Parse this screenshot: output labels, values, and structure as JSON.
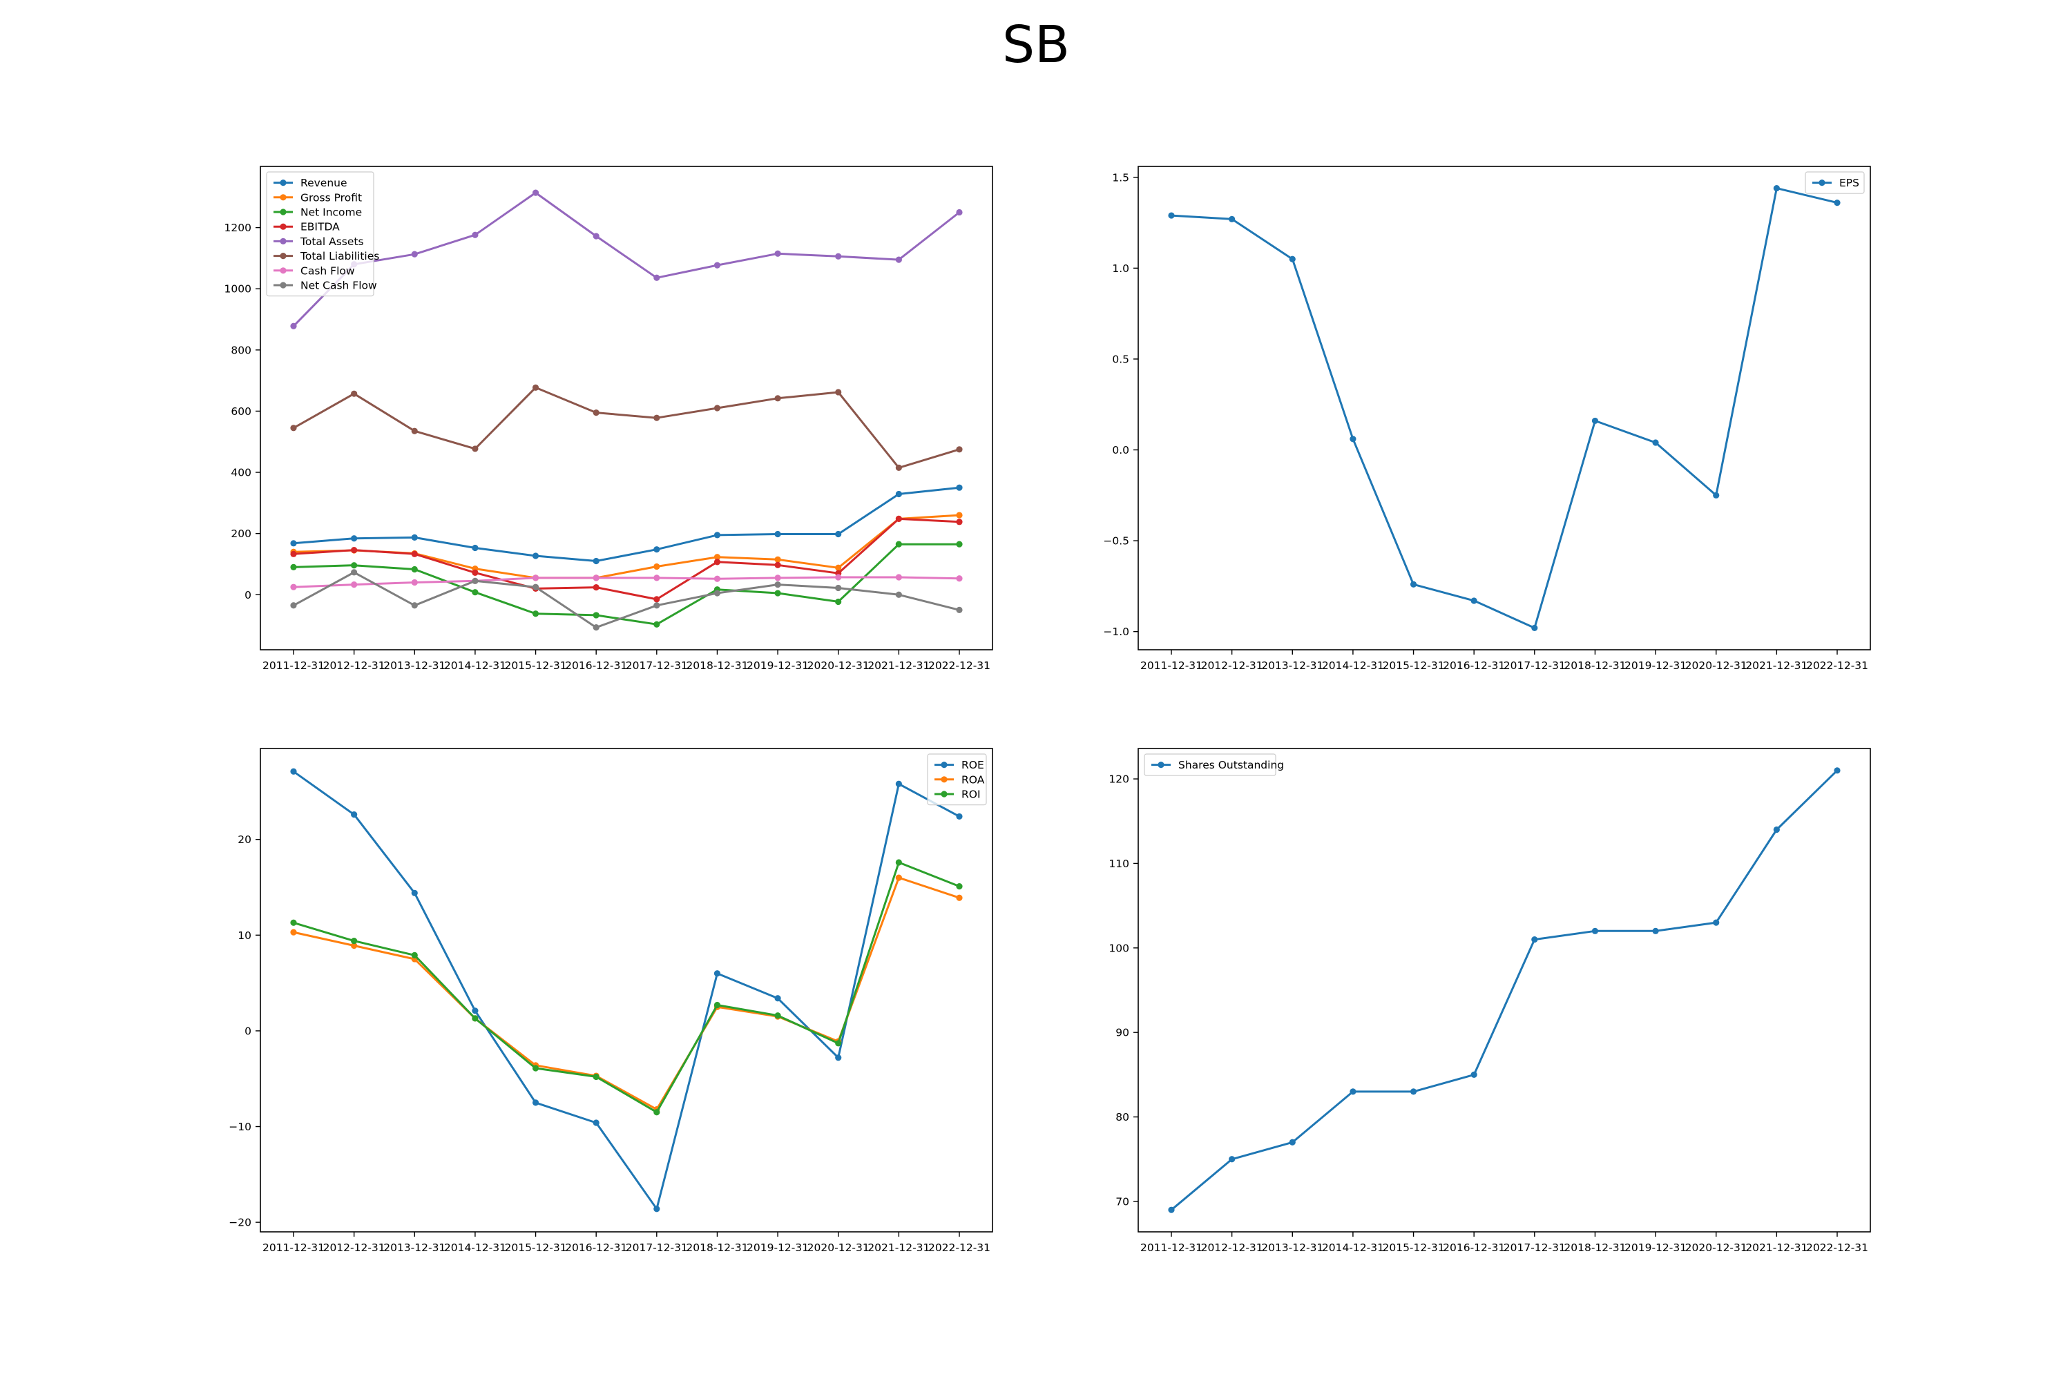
{
  "figure_title": "SB",
  "chart_data": [
    {
      "type": "line",
      "x": [
        "2011-12-31",
        "2012-12-31",
        "2013-12-31",
        "2014-12-31",
        "2015-12-31",
        "2016-12-31",
        "2017-12-31",
        "2018-12-31",
        "2019-12-31",
        "2020-12-31",
        "2021-12-31",
        "2022-12-31"
      ],
      "ylim": [
        -180,
        1400
      ],
      "yticks": [
        0,
        200,
        400,
        600,
        800,
        1000,
        1200
      ],
      "legend": "top-left",
      "grid": false,
      "series": [
        {
          "name": "Revenue",
          "color": "#1f77b4",
          "values": [
            168,
            184,
            187,
            153,
            127,
            110,
            148,
            195,
            198,
            198,
            329,
            350
          ]
        },
        {
          "name": "Gross Profit",
          "color": "#ff7f0e",
          "values": [
            140,
            145,
            135,
            85,
            55,
            55,
            92,
            123,
            115,
            88,
            248,
            260
          ]
        },
        {
          "name": "Net Income",
          "color": "#2ca02c",
          "values": [
            90,
            96,
            83,
            8,
            -62,
            -67,
            -97,
            17,
            5,
            -23,
            165,
            165
          ]
        },
        {
          "name": "EBITDA",
          "color": "#d62728",
          "values": [
            133,
            146,
            133,
            72,
            20,
            24,
            -15,
            107,
            97,
            70,
            248,
            238
          ]
        },
        {
          "name": "Total Assets",
          "color": "#9467bd",
          "values": [
            878,
            1080,
            1113,
            1176,
            1314,
            1172,
            1036,
            1077,
            1115,
            1106,
            1095,
            1250
          ]
        },
        {
          "name": "Total Liabilities",
          "color": "#8c564b",
          "values": [
            545,
            657,
            535,
            477,
            677,
            595,
            578,
            610,
            642,
            662,
            415,
            475
          ]
        },
        {
          "name": "Cash Flow",
          "color": "#e377c2",
          "values": [
            25,
            33,
            40,
            45,
            55,
            55,
            55,
            52,
            55,
            57,
            57,
            53
          ]
        },
        {
          "name": "Net Cash Flow",
          "color": "#7f7f7f",
          "values": [
            -35,
            73,
            -35,
            45,
            25,
            -107,
            -35,
            5,
            33,
            22,
            0,
            -50
          ]
        }
      ]
    },
    {
      "type": "line",
      "x": [
        "2011-12-31",
        "2012-12-31",
        "2013-12-31",
        "2014-12-31",
        "2015-12-31",
        "2016-12-31",
        "2017-12-31",
        "2018-12-31",
        "2019-12-31",
        "2020-12-31",
        "2021-12-31",
        "2022-12-31"
      ],
      "ylim": [
        -1.1,
        1.56
      ],
      "yticks": [
        -1.0,
        -0.5,
        0.0,
        0.5,
        1.0,
        1.5
      ],
      "ytick_labels": [
        "−1.0",
        "−0.5",
        "0.0",
        "0.5",
        "1.0",
        "1.5"
      ],
      "legend": "top-right",
      "grid": false,
      "series": [
        {
          "name": "EPS",
          "color": "#1f77b4",
          "values": [
            1.29,
            1.27,
            1.05,
            0.06,
            -0.74,
            -0.83,
            -0.98,
            0.16,
            0.04,
            -0.25,
            1.44,
            1.36
          ]
        }
      ]
    },
    {
      "type": "line",
      "x": [
        "2011-12-31",
        "2012-12-31",
        "2013-12-31",
        "2014-12-31",
        "2015-12-31",
        "2016-12-31",
        "2017-12-31",
        "2018-12-31",
        "2019-12-31",
        "2020-12-31",
        "2021-12-31",
        "2022-12-31"
      ],
      "ylim": [
        -21,
        29.5
      ],
      "yticks": [
        -20,
        -10,
        0,
        10,
        20
      ],
      "ytick_labels": [
        "−20",
        "−10",
        "0",
        "10",
        "20"
      ],
      "legend": "top-right",
      "grid": false,
      "series": [
        {
          "name": "ROE",
          "color": "#1f77b4",
          "values": [
            27.1,
            22.6,
            14.4,
            2.1,
            -7.5,
            -9.6,
            -18.6,
            6.0,
            3.4,
            -2.8,
            25.8,
            22.4
          ]
        },
        {
          "name": "ROA",
          "color": "#ff7f0e",
          "values": [
            10.3,
            8.9,
            7.5,
            1.3,
            -3.6,
            -4.7,
            -8.2,
            2.5,
            1.5,
            -1.1,
            16.0,
            13.9
          ]
        },
        {
          "name": "ROI",
          "color": "#2ca02c",
          "values": [
            11.3,
            9.4,
            7.9,
            1.3,
            -3.9,
            -4.8,
            -8.5,
            2.7,
            1.6,
            -1.3,
            17.6,
            15.1
          ]
        }
      ]
    },
    {
      "type": "line",
      "x": [
        "2011-12-31",
        "2012-12-31",
        "2013-12-31",
        "2014-12-31",
        "2015-12-31",
        "2016-12-31",
        "2017-12-31",
        "2018-12-31",
        "2019-12-31",
        "2020-12-31",
        "2021-12-31",
        "2022-12-31"
      ],
      "ylim": [
        66.4,
        123.6
      ],
      "yticks": [
        70,
        80,
        90,
        100,
        110,
        120
      ],
      "legend": "top-left",
      "grid": false,
      "series": [
        {
          "name": "Shares Outstanding",
          "color": "#1f77b4",
          "values": [
            69,
            75,
            77,
            83,
            83,
            85,
            101,
            102,
            102,
            103,
            114,
            121
          ]
        }
      ]
    }
  ]
}
